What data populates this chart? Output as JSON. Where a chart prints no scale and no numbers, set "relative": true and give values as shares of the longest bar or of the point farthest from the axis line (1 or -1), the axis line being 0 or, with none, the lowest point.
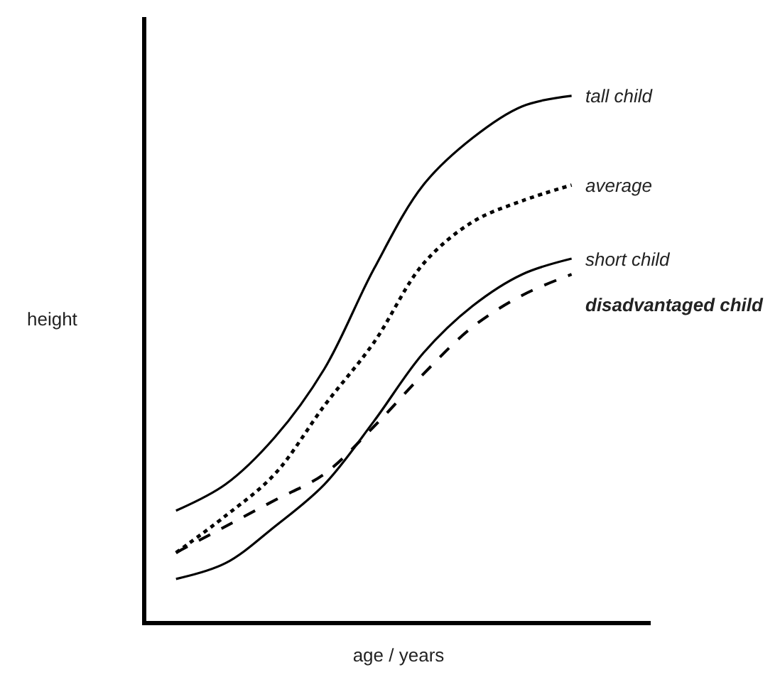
{
  "chart_data": {
    "type": "line",
    "relative": true,
    "xlabel": "age / years",
    "ylabel": "height",
    "categories": [
      null,
      null,
      null,
      null,
      null,
      null,
      null,
      null,
      null
    ],
    "legend": false,
    "tick_labels": false,
    "series": [
      {
        "name": "tall child",
        "color": "#000000",
        "line_style": "solid",
        "values": [
          0.21,
          0.26,
          0.35,
          0.48,
          0.67,
          0.83,
          0.92,
          0.98,
          1
        ]
      },
      {
        "name": "average",
        "color": "#000000",
        "line_style": "dotted",
        "values": [
          0.13,
          0.2,
          0.28,
          0.41,
          0.53,
          0.68,
          0.76,
          0.8,
          0.83
        ]
      },
      {
        "name": "short child",
        "color": "#000000",
        "line_style": "solid",
        "values": [
          0.08,
          0.11,
          0.18,
          0.26,
          0.38,
          0.51,
          0.6,
          0.66,
          0.69
        ]
      },
      {
        "name": "disadvantaged child",
        "color": "#000000",
        "line_style": "dashed",
        "values": [
          0.13,
          0.18,
          0.23,
          0.28,
          0.37,
          0.47,
          0.56,
          0.62,
          0.66
        ]
      }
    ]
  }
}
